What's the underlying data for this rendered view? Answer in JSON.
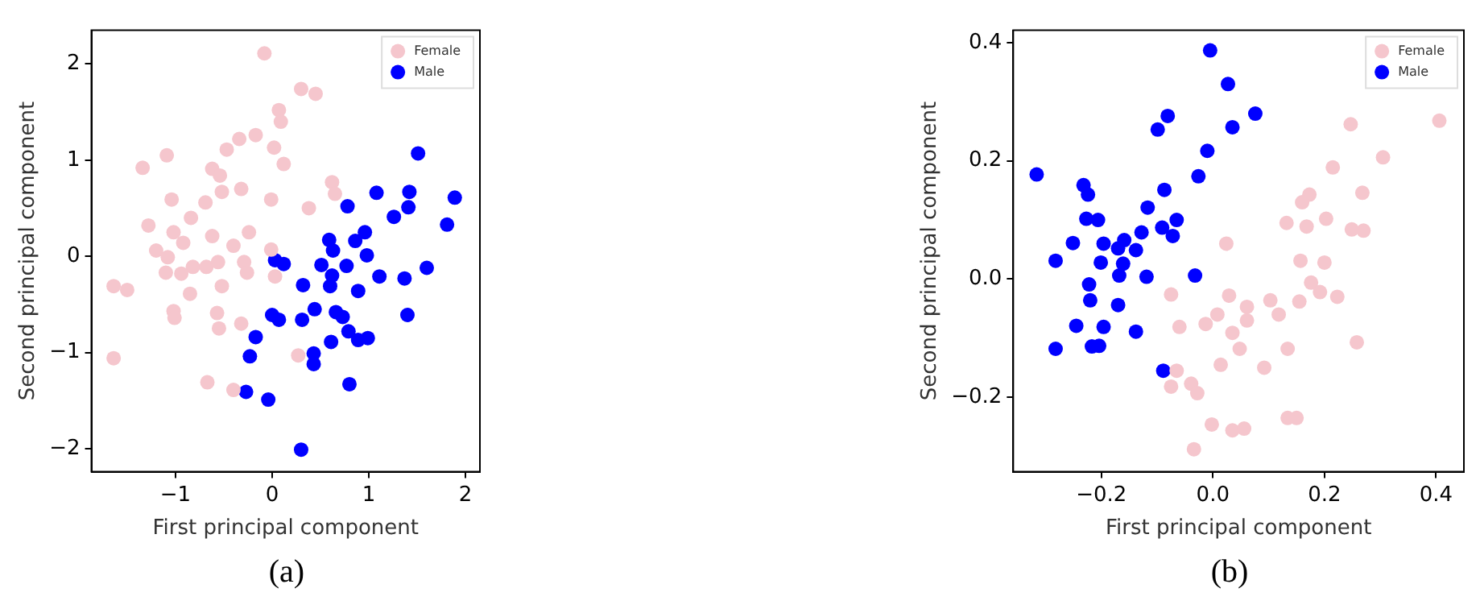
{
  "chart_data": [
    {
      "type": "scatter",
      "xlabel": "First principal component",
      "ylabel": "Second principal component",
      "annotations": [
        "(a)"
      ],
      "xlim": [
        -1.87,
        2.15
      ],
      "ylim": [
        -2.24,
        2.35
      ],
      "xticks": [
        {
          "value": -1,
          "label": "−1"
        },
        {
          "value": 0,
          "label": "0"
        },
        {
          "value": 1,
          "label": "1"
        },
        {
          "value": 2,
          "label": "2"
        }
      ],
      "yticks": [
        {
          "value": -2,
          "label": "−2"
        },
        {
          "value": -1,
          "label": "−1"
        },
        {
          "value": 0,
          "label": "0"
        },
        {
          "value": 1,
          "label": "1"
        },
        {
          "value": 2,
          "label": "2"
        }
      ],
      "grid": false,
      "legend": "top right",
      "marker": "circle",
      "series": [
        {
          "name": "Female",
          "color": "#f5c6cd",
          "x": [
            -0.08,
            0.3,
            0.45,
            0.07,
            0.09,
            -0.17,
            -0.34,
            -0.47,
            0.02,
            -1.09,
            0.12,
            -1.34,
            -0.62,
            -0.54,
            -0.52,
            0.62,
            0.65,
            -1.04,
            -0.69,
            -0.32,
            -0.01,
            0.38,
            -0.84,
            -1.28,
            -1.02,
            -0.62,
            -0.92,
            -0.24,
            -0.4,
            -1.2,
            -1.08,
            -0.82,
            -0.68,
            -0.56,
            -0.29,
            -0.01,
            -1.1,
            -0.94,
            -0.52,
            -0.26,
            0.03,
            -1.64,
            -1.5,
            -0.85,
            -1.02,
            -1.01,
            -0.57,
            -0.55,
            -0.32,
            -1.64,
            -0.67,
            -0.4,
            0.27
          ],
          "values": [
            2.11,
            1.74,
            1.69,
            1.52,
            1.4,
            1.26,
            1.22,
            1.11,
            1.13,
            1.05,
            0.96,
            0.92,
            0.91,
            0.84,
            0.67,
            0.77,
            0.65,
            0.59,
            0.56,
            0.7,
            0.59,
            0.5,
            0.4,
            0.32,
            0.25,
            0.21,
            0.14,
            0.25,
            0.11,
            0.06,
            -0.01,
            -0.11,
            -0.11,
            -0.06,
            -0.06,
            0.07,
            -0.17,
            -0.18,
            -0.31,
            -0.17,
            -0.21,
            -0.31,
            -0.35,
            -0.39,
            -0.57,
            -0.64,
            -0.59,
            -0.75,
            -0.7,
            -1.06,
            -1.31,
            -1.39,
            -1.03
          ]
        },
        {
          "name": "Male",
          "color": "#0000ff",
          "x": [
            1.51,
            1.08,
            1.42,
            1.41,
            1.89,
            0.78,
            1.26,
            1.81,
            0.96,
            0.59,
            0.86,
            0.63,
            0.98,
            0.03,
            0.12,
            0.51,
            0.77,
            0.62,
            1.11,
            1.37,
            1.6,
            0.32,
            0.6,
            0.89,
            0.44,
            0.31,
            0.66,
            0.73,
            1.4,
            0.0,
            0.07,
            -0.17,
            0.79,
            0.89,
            0.99,
            0.61,
            -0.23,
            0.43,
            0.43,
            -0.27,
            -0.04,
            0.8,
            0.3
          ],
          "values": [
            1.07,
            0.66,
            0.67,
            0.51,
            0.61,
            0.52,
            0.41,
            0.33,
            0.25,
            0.17,
            0.16,
            0.06,
            0.01,
            -0.04,
            -0.08,
            -0.09,
            -0.1,
            -0.2,
            -0.21,
            -0.23,
            -0.12,
            -0.3,
            -0.31,
            -0.36,
            -0.55,
            -0.66,
            -0.58,
            -0.63,
            -0.61,
            -0.61,
            -0.66,
            -0.84,
            -0.78,
            -0.87,
            -0.85,
            -0.89,
            -1.04,
            -1.01,
            -1.12,
            -1.41,
            -1.49,
            -1.33,
            -2.01
          ]
        }
      ]
    },
    {
      "type": "scatter",
      "xlabel": "First principal component",
      "ylabel": "Second principal component",
      "annotations": [
        "(b)"
      ],
      "xlim": [
        -0.358,
        0.45
      ],
      "ylim": [
        -0.326,
        0.421
      ],
      "xticks": [
        {
          "value": -0.2,
          "label": "−0.2"
        },
        {
          "value": 0,
          "label": "0.0"
        },
        {
          "value": 0.2,
          "label": "0.2"
        },
        {
          "value": 0.4,
          "label": "0.4"
        }
      ],
      "yticks": [
        {
          "value": -0.2,
          "label": "−0.2"
        },
        {
          "value": 0,
          "label": "0.0"
        },
        {
          "value": 0.2,
          "label": "0.2"
        },
        {
          "value": 0.4,
          "label": "0.4"
        }
      ],
      "grid": false,
      "legend": "top right",
      "marker": "circle",
      "series": [
        {
          "name": "Female",
          "color": "#f5c6cd",
          "x": [
            0.406,
            0.247,
            0.305,
            0.215,
            0.268,
            0.173,
            0.16,
            0.203,
            0.132,
            0.168,
            0.27,
            0.249,
            0.024,
            0.157,
            0.2,
            0.176,
            0.192,
            0.223,
            0.155,
            0.103,
            0.061,
            0.029,
            0.008,
            0.061,
            0.118,
            -0.013,
            -0.075,
            -0.06,
            0.035,
            0.048,
            0.258,
            0.134,
            0.014,
            0.092,
            -0.065,
            -0.039,
            -0.075,
            -0.028,
            0.15,
            0.134,
            -0.002,
            0.035,
            0.056,
            -0.034
          ],
          "values": [
            0.268,
            0.262,
            0.206,
            0.189,
            0.146,
            0.143,
            0.13,
            0.102,
            0.095,
            0.089,
            0.082,
            0.084,
            0.06,
            0.031,
            0.028,
            -0.006,
            -0.022,
            -0.03,
            -0.038,
            -0.036,
            -0.047,
            -0.028,
            -0.06,
            -0.07,
            -0.06,
            -0.076,
            -0.026,
            -0.081,
            -0.091,
            -0.118,
            -0.107,
            -0.118,
            -0.145,
            -0.15,
            -0.155,
            -0.177,
            -0.182,
            -0.193,
            -0.235,
            -0.235,
            -0.246,
            -0.256,
            -0.253,
            -0.288
          ]
        },
        {
          "name": "Male",
          "color": "#0000ff",
          "x": [
            -0.316,
            -0.005,
            0.027,
            0.076,
            0.035,
            -0.081,
            -0.099,
            -0.01,
            -0.026,
            -0.232,
            -0.224,
            -0.087,
            -0.117,
            -0.227,
            -0.206,
            -0.065,
            -0.091,
            -0.128,
            -0.072,
            -0.159,
            -0.196,
            -0.251,
            -0.17,
            -0.138,
            -0.282,
            -0.201,
            -0.161,
            -0.168,
            -0.119,
            -0.032,
            -0.222,
            -0.22,
            -0.17,
            -0.245,
            -0.196,
            -0.204,
            -0.138,
            -0.217,
            -0.282,
            -0.089
          ],
          "values": [
            0.177,
            0.387,
            0.33,
            0.28,
            0.257,
            0.276,
            0.253,
            0.217,
            0.174,
            0.159,
            0.143,
            0.151,
            0.121,
            0.102,
            0.1,
            0.1,
            0.087,
            0.079,
            0.073,
            0.066,
            0.06,
            0.061,
            0.052,
            0.049,
            0.031,
            0.028,
            0.026,
            0.006,
            0.004,
            0.006,
            -0.009,
            -0.036,
            -0.044,
            -0.079,
            -0.081,
            -0.113,
            -0.089,
            -0.114,
            -0.118,
            -0.155
          ]
        }
      ]
    }
  ]
}
